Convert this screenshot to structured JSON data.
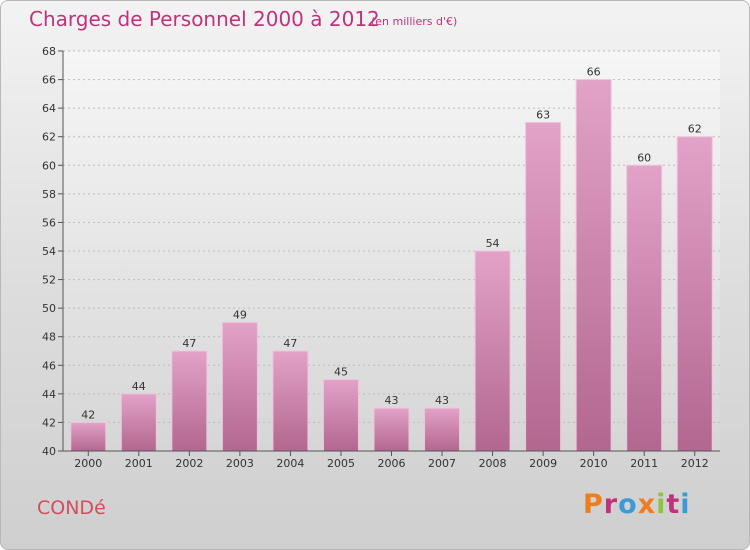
{
  "header": {
    "title": "Charges de Personnel 2000 à 2012",
    "subtitle": "(en milliers d'€)"
  },
  "footer": {
    "commune": "CONDé",
    "logo_text": "Proxiti",
    "logo_colors": [
      "#ee7d1f",
      "#c0337b",
      "#3c9ad6",
      "#ee7d1f",
      "#8cc63e",
      "#c0337b",
      "#3c9ad6"
    ]
  },
  "colors": {
    "bar_top": "#e3a2c8",
    "bar_bottom": "#b2678f",
    "title": "#c0337b"
  },
  "chart_data": {
    "type": "bar",
    "categories": [
      "2000",
      "2001",
      "2002",
      "2003",
      "2004",
      "2005",
      "2006",
      "2007",
      "2008",
      "2009",
      "2010",
      "2011",
      "2012"
    ],
    "values": [
      42,
      44,
      47,
      49,
      47,
      45,
      43,
      43,
      54,
      63,
      66,
      60,
      62
    ],
    "ylim": [
      40,
      68
    ],
    "yticks": [
      40,
      42,
      44,
      46,
      48,
      50,
      52,
      54,
      56,
      58,
      60,
      62,
      64,
      66,
      68
    ],
    "grid": true
  }
}
